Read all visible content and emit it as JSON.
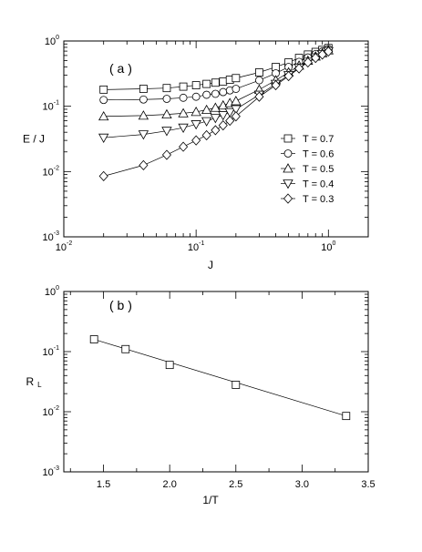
{
  "chart_data": [
    {
      "panel_label": "( a )",
      "type": "line",
      "xscale": "log",
      "yscale": "log",
      "xlim": [
        0.01,
        2
      ],
      "ylim": [
        0.001,
        1
      ],
      "xlabel": "J",
      "ylabel": "E / J",
      "xticks": [
        {
          "value": 0.01,
          "base": "10",
          "exp": "-2"
        },
        {
          "value": 0.1,
          "base": "10",
          "exp": "-1"
        },
        {
          "value": 1,
          "base": "10",
          "exp": "0"
        }
      ],
      "yticks": [
        {
          "value": 0.001,
          "base": "10",
          "exp": "-3"
        },
        {
          "value": 0.01,
          "base": "10",
          "exp": "-2"
        },
        {
          "value": 0.1,
          "base": "10",
          "exp": "-1"
        },
        {
          "value": 1,
          "base": "10",
          "exp": "0"
        }
      ],
      "legend_position": "right",
      "series": [
        {
          "name": "T = 0.7",
          "marker": "square",
          "x": [
            0.02,
            0.04,
            0.06,
            0.08,
            0.1,
            0.12,
            0.14,
            0.16,
            0.18,
            0.2,
            0.3,
            0.4,
            0.5,
            0.6,
            0.7,
            0.8,
            0.9,
            1.0
          ],
          "y": [
            0.18,
            0.185,
            0.19,
            0.2,
            0.21,
            0.22,
            0.23,
            0.24,
            0.255,
            0.27,
            0.33,
            0.4,
            0.47,
            0.55,
            0.62,
            0.68,
            0.73,
            0.78
          ]
        },
        {
          "name": "T = 0.6",
          "marker": "circle",
          "x": [
            0.02,
            0.04,
            0.06,
            0.08,
            0.1,
            0.12,
            0.14,
            0.16,
            0.18,
            0.2,
            0.3,
            0.4,
            0.5,
            0.6,
            0.7,
            0.8,
            0.9,
            1.0
          ],
          "y": [
            0.125,
            0.127,
            0.13,
            0.135,
            0.14,
            0.15,
            0.155,
            0.165,
            0.175,
            0.185,
            0.25,
            0.32,
            0.4,
            0.48,
            0.56,
            0.63,
            0.69,
            0.75
          ]
        },
        {
          "name": "T = 0.5",
          "marker": "triangle-up",
          "x": [
            0.02,
            0.04,
            0.06,
            0.08,
            0.1,
            0.12,
            0.14,
            0.16,
            0.18,
            0.2,
            0.3,
            0.4,
            0.5,
            0.6,
            0.7,
            0.8,
            0.9,
            1.0
          ],
          "y": [
            0.07,
            0.072,
            0.075,
            0.078,
            0.082,
            0.088,
            0.095,
            0.103,
            0.112,
            0.12,
            0.18,
            0.25,
            0.33,
            0.42,
            0.5,
            0.58,
            0.65,
            0.72
          ]
        },
        {
          "name": "T = 0.4",
          "marker": "triangle-down",
          "x": [
            0.02,
            0.04,
            0.06,
            0.08,
            0.1,
            0.12,
            0.14,
            0.16,
            0.18,
            0.2,
            0.3,
            0.4,
            0.5,
            0.6,
            0.7,
            0.8,
            0.9,
            1.0
          ],
          "y": [
            0.033,
            0.037,
            0.042,
            0.047,
            0.053,
            0.059,
            0.066,
            0.073,
            0.081,
            0.09,
            0.15,
            0.22,
            0.3,
            0.39,
            0.48,
            0.56,
            0.63,
            0.7
          ]
        },
        {
          "name": "T = 0.3",
          "marker": "diamond",
          "x": [
            0.02,
            0.04,
            0.06,
            0.08,
            0.1,
            0.12,
            0.14,
            0.16,
            0.18,
            0.2,
            0.3,
            0.4,
            0.5,
            0.6,
            0.7,
            0.8,
            0.9,
            1.0
          ],
          "y": [
            0.0085,
            0.0125,
            0.018,
            0.024,
            0.03,
            0.036,
            0.043,
            0.051,
            0.06,
            0.07,
            0.14,
            0.21,
            0.29,
            0.38,
            0.47,
            0.55,
            0.62,
            0.69
          ]
        }
      ]
    },
    {
      "panel_label": "( b )",
      "type": "scatter",
      "xscale": "linear",
      "yscale": "log",
      "xlim": [
        1.2,
        3.5
      ],
      "ylim": [
        0.001,
        1
      ],
      "xlabel": "1/T",
      "ylabel": "R",
      "ylabel_sub": "L",
      "xticks": [
        {
          "value": 1.5,
          "label": "1.5"
        },
        {
          "value": 2.0,
          "label": "2.0"
        },
        {
          "value": 2.5,
          "label": "2.5"
        },
        {
          "value": 3.0,
          "label": "3.0"
        },
        {
          "value": 3.5,
          "label": "3.5"
        }
      ],
      "yticks": [
        {
          "value": 0.001,
          "base": "10",
          "exp": "-3"
        },
        {
          "value": 0.01,
          "base": "10",
          "exp": "-2"
        },
        {
          "value": 0.1,
          "base": "10",
          "exp": "-1"
        },
        {
          "value": 1,
          "base": "10",
          "exp": "0"
        }
      ],
      "series": [
        {
          "marker": "square",
          "x": [
            1.4286,
            1.6667,
            2.0,
            2.5,
            3.3333
          ],
          "y": [
            0.16,
            0.11,
            0.06,
            0.028,
            0.0085
          ]
        }
      ],
      "fit_line": {
        "x": [
          1.4286,
          3.3333
        ],
        "y": [
          0.16,
          0.0085
        ]
      }
    }
  ]
}
